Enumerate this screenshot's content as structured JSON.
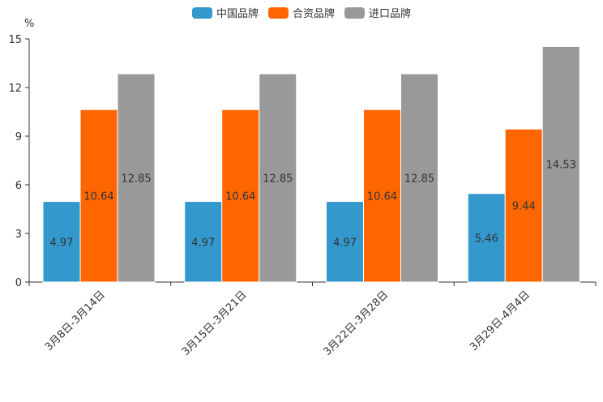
{
  "chart_data": {
    "type": "bar",
    "title": "",
    "xlabel": "",
    "ylabel": "%",
    "ylim": [
      0,
      15
    ],
    "yticks": [
      0,
      3,
      6,
      9,
      12,
      15
    ],
    "legend_position": "top-center",
    "categories": [
      "3月8日-3月14日",
      "3月15日-3月21日",
      "3月22日-3月28日",
      "3月29日-4月4日"
    ],
    "series": [
      {
        "name": "中国品牌",
        "color": "#3398cc",
        "values": [
          4.97,
          4.97,
          4.97,
          5.46
        ],
        "value_labels": [
          "4.97",
          "4.97",
          "4.97",
          "5.46"
        ]
      },
      {
        "name": "合资品牌",
        "color": "#ff6600",
        "values": [
          10.64,
          10.64,
          10.64,
          9.44
        ],
        "value_labels": [
          "10.64",
          "10.64",
          "10.64",
          "9.44"
        ]
      },
      {
        "name": "进口品牌",
        "color": "#999999",
        "values": [
          12.85,
          12.85,
          12.85,
          14.53
        ],
        "value_labels": [
          "12.85",
          "12.85",
          "12.85",
          "14.53"
        ]
      }
    ]
  }
}
